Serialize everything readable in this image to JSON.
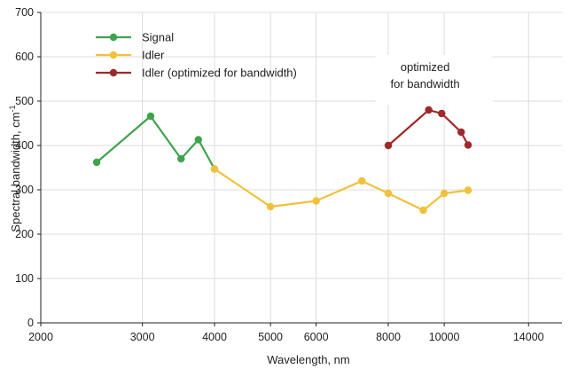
{
  "chart_data": {
    "type": "line",
    "xlabel": "Wavelength, nm",
    "ylabel": "Spectral bandwidth, cm",
    "ylabel_sup": "-1",
    "x_scale": "log",
    "xlim": [
      2000,
      16000
    ],
    "ylim": [
      0,
      700
    ],
    "x_ticks": [
      2000,
      3000,
      4000,
      5000,
      6000,
      8000,
      10000,
      14000
    ],
    "x_tick_labels": [
      "2000",
      "3000",
      "4000",
      "5000",
      "6000",
      "8000",
      "10000",
      "14000"
    ],
    "y_ticks": [
      0,
      100,
      200,
      300,
      400,
      500,
      600,
      700
    ],
    "y_tick_labels": [
      "0",
      "100",
      "200",
      "300",
      "400",
      "500",
      "600",
      "700"
    ],
    "grid": true,
    "legend_position": "top-left",
    "series": [
      {
        "name": "Signal",
        "color": "#3fa34d",
        "x": [
          2500,
          3100,
          3500,
          3750,
          4000
        ],
        "y": [
          362,
          466,
          370,
          413,
          347
        ]
      },
      {
        "name": "Idler",
        "color": "#f0c13a",
        "x": [
          4000,
          5000,
          6000,
          7200,
          8000,
          9200,
          10000,
          11000
        ],
        "y": [
          347,
          262,
          275,
          320,
          292,
          254,
          292,
          299
        ]
      },
      {
        "name": "Idler (optimized for bandwidth)",
        "color": "#a0282a",
        "x": [
          8000,
          9400,
          9900,
          10700,
          11000
        ],
        "y": [
          400,
          480,
          472,
          430,
          401
        ]
      }
    ],
    "annotation": {
      "lines": [
        "optimized",
        "for bandwidth"
      ],
      "x": 9600
    }
  }
}
